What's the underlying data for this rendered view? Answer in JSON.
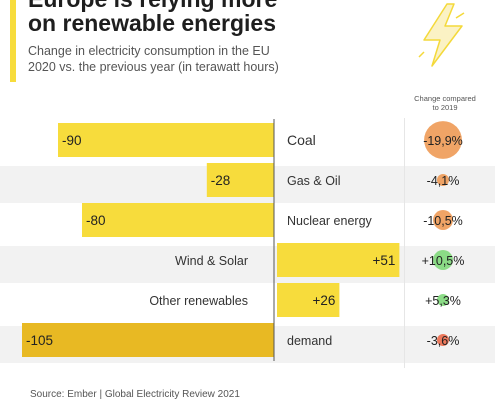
{
  "header": {
    "title_line1": "Europe is relying more",
    "title_line2": "on renewable energies",
    "subtitle_line1": "Change in electricity consumption in the EU",
    "subtitle_line2": "2020 vs. the previous year (in terawatt hours)"
  },
  "pct_header": {
    "line1": "Change compared",
    "line2": "to 2019"
  },
  "footer": {
    "source": "Source: Ember | Global Electricity Review 2021"
  },
  "colors": {
    "bar_light": "#f7dc3c",
    "bar_dark": "#e8b923",
    "negative_circle": "#ee9a55",
    "positive_circle": "#7fd87a",
    "demand_circle": "#ec6b4b",
    "stripe": "#f2f2f2",
    "accent": "#f7dc3c"
  },
  "icons": [
    "lightning-bolt-icon"
  ],
  "chart_data": {
    "type": "bar",
    "orientation": "horizontal",
    "categories": [
      "Coal",
      "Gas & Oil",
      "Nuclear energy",
      "Wind & Solar",
      "Other renewables",
      "demand"
    ],
    "values": [
      -90,
      -28,
      -80,
      51,
      26,
      -105
    ],
    "value_labels": [
      "-90",
      "-28",
      "-80",
      "+51",
      "+26",
      "-105"
    ],
    "pct_change": [
      -19.9,
      -4.1,
      -10.5,
      10.5,
      5.3,
      -3.6
    ],
    "pct_labels": [
      "-19,9%",
      "-4,1%",
      "-10,5%",
      "+10,5%",
      "+5,3%",
      "-3,6%"
    ],
    "unit": "terawatt hours",
    "xlim": [
      -110,
      60
    ],
    "highlight_category": "demand"
  }
}
